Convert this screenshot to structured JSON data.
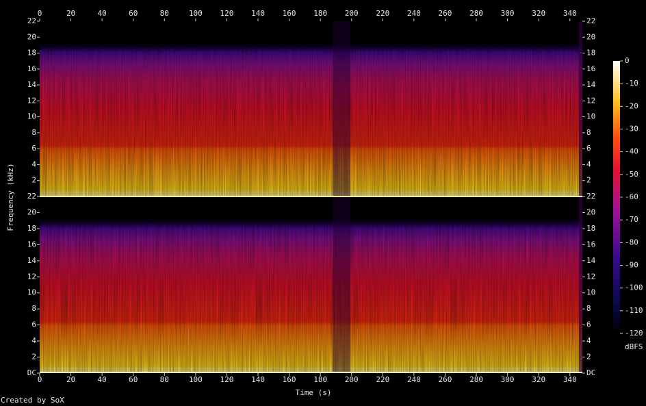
{
  "chart_data": {
    "type": "spectrogram",
    "x_label": "Time (s)",
    "y_label": "Frequency (kHz)",
    "xlim": [
      0,
      348
    ],
    "xticks": [
      0,
      20,
      40,
      60,
      80,
      100,
      120,
      140,
      160,
      180,
      200,
      220,
      240,
      260,
      280,
      300,
      320,
      340
    ],
    "channels": [
      {
        "ylim": [
          0,
          22
        ],
        "yticks": [
          2,
          4,
          6,
          8,
          10,
          12,
          14,
          16,
          18,
          20,
          22
        ]
      },
      {
        "ylim": [
          0,
          22
        ],
        "yticks": [
          {
            "value": 0,
            "label": "DC"
          },
          2,
          4,
          6,
          8,
          10,
          12,
          14,
          16,
          18,
          20,
          22
        ]
      }
    ],
    "colorbar": {
      "label": "dBFS",
      "lim": [
        -120,
        0
      ],
      "ticks": [
        0,
        -10,
        -20,
        -30,
        -40,
        -50,
        -60,
        -70,
        -80,
        -90,
        -100,
        -110,
        -120
      ]
    },
    "footer": "Created by SoX"
  }
}
